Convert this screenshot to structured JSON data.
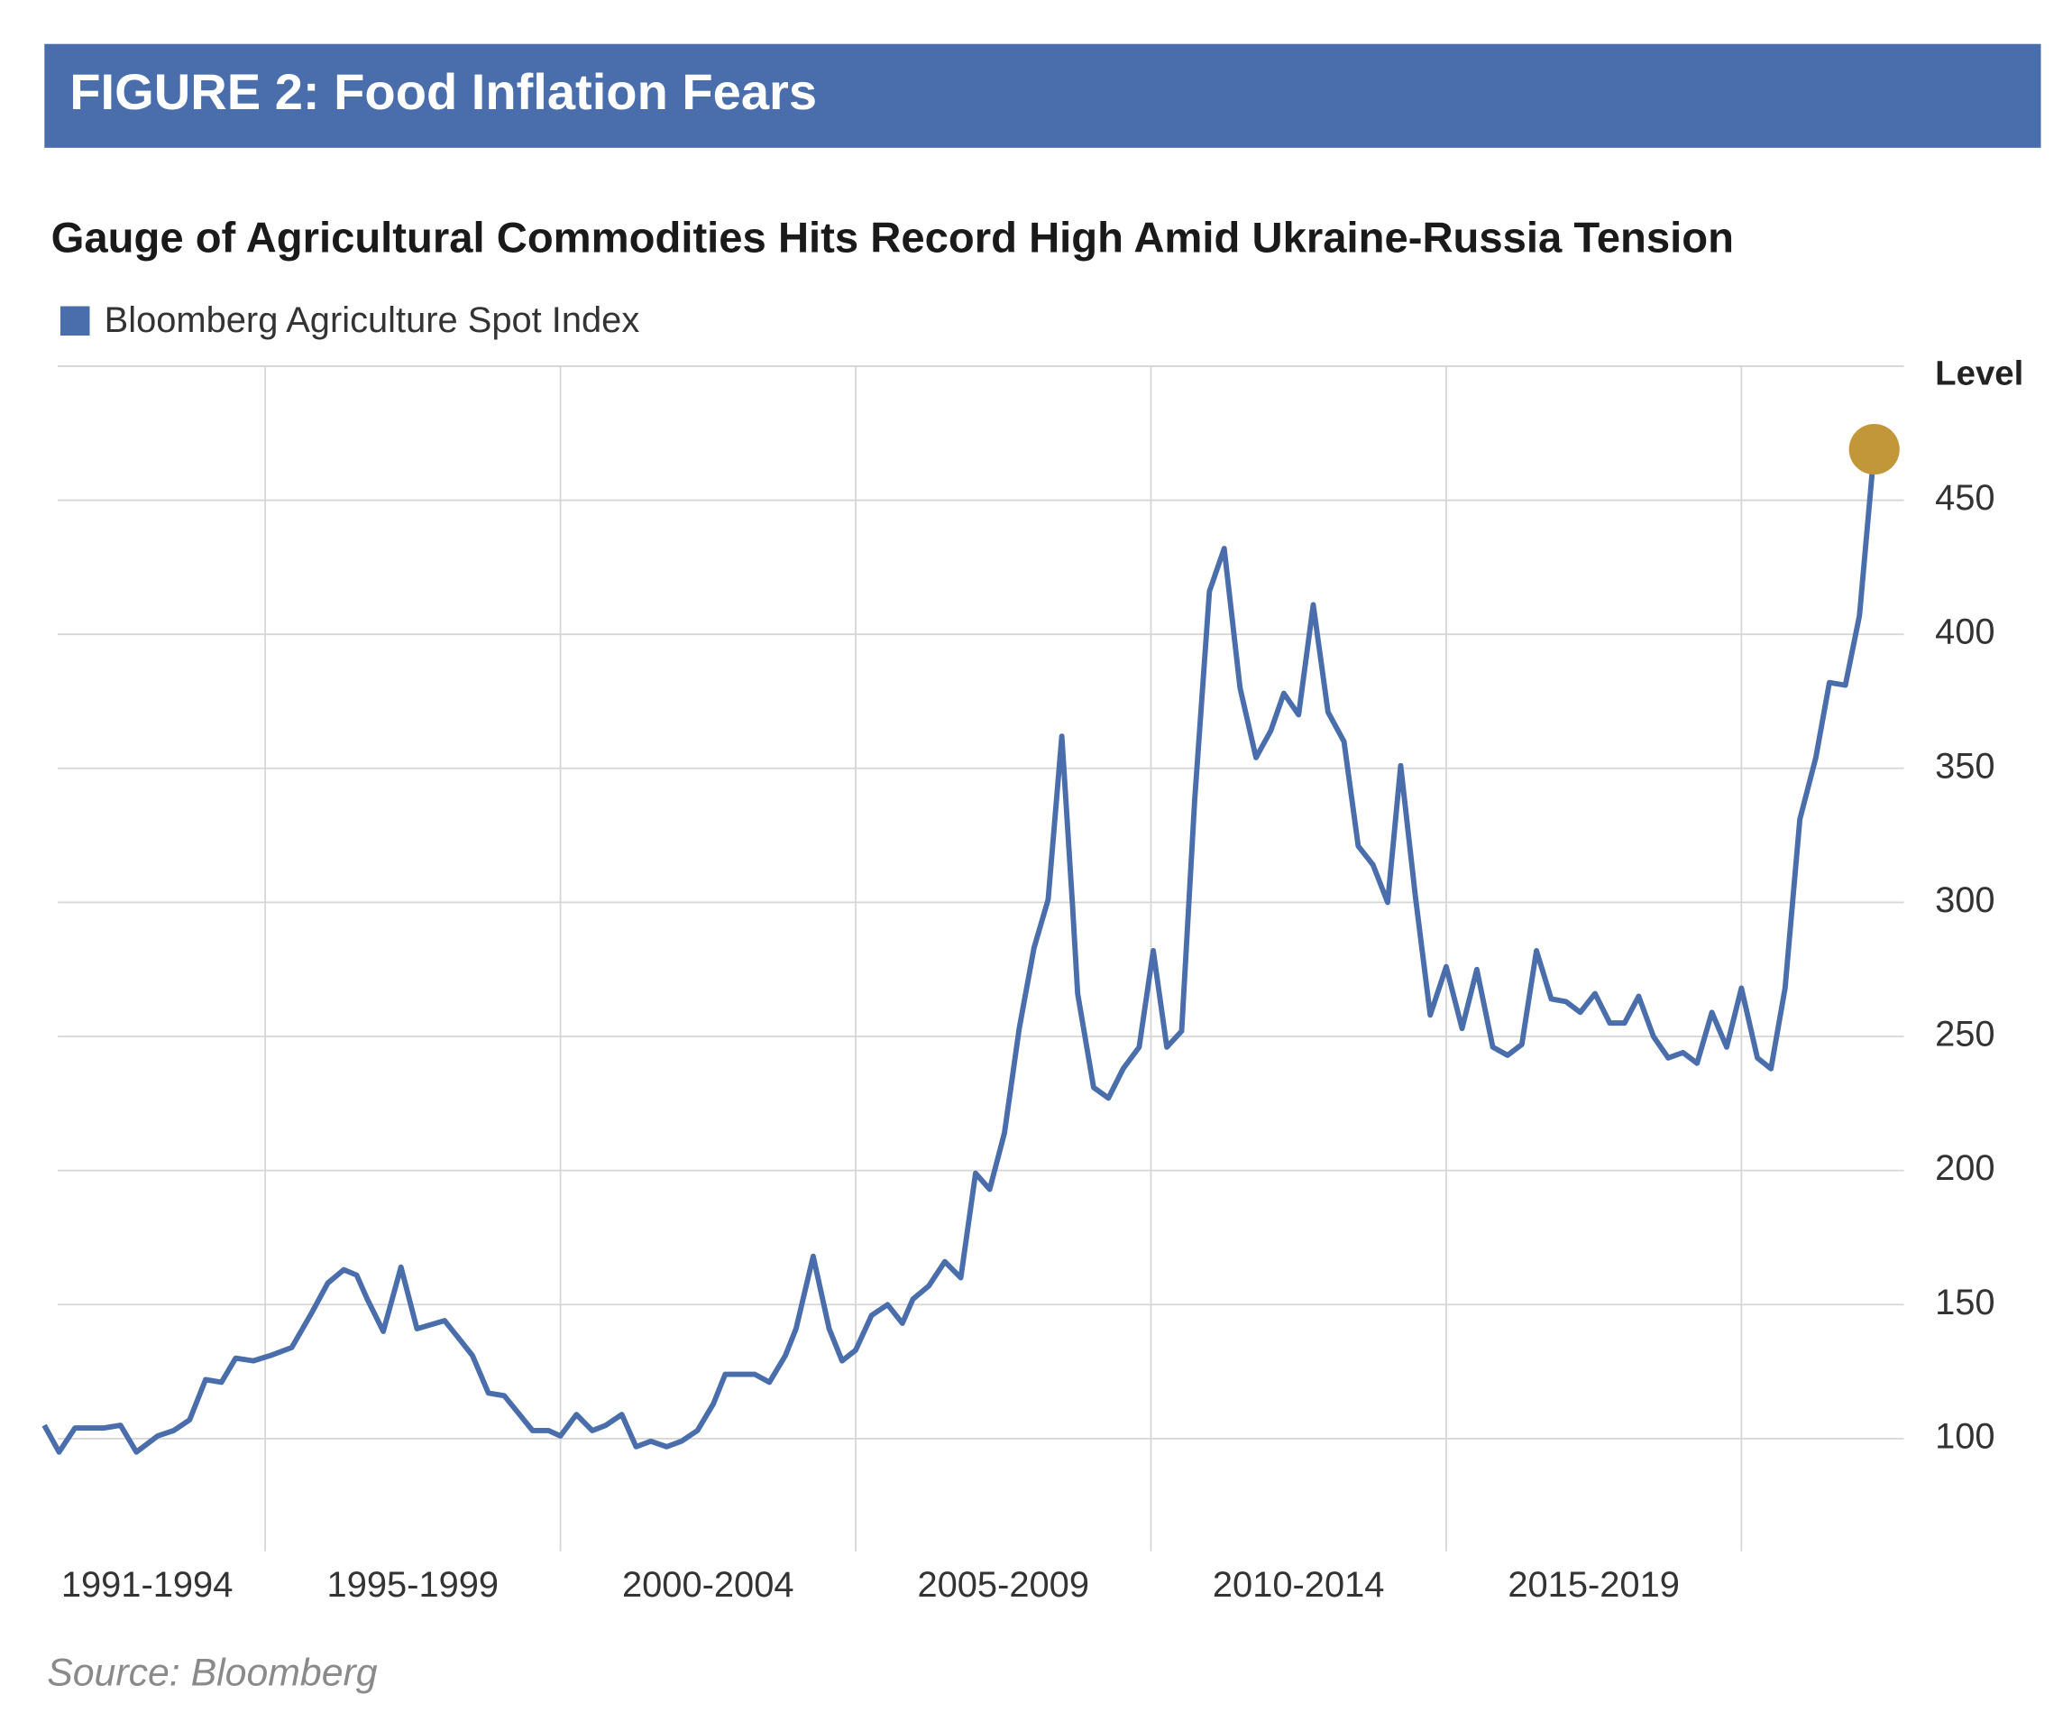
{
  "header": {
    "title": "FIGURE 2: Food Inflation Fears"
  },
  "chart_data": {
    "type": "line",
    "title": "Gauge of Agricultural Commodities Hits Record High Amid Ukraine-Russia Tension",
    "y_axis_label": "Level",
    "source": "Source: Bloomberg",
    "period_labels": [
      "1991-1994",
      "1995-1999",
      "2000-2004",
      "2005-2009",
      "2010-2014",
      "2015-2019"
    ],
    "xlim": [
      1991.0,
      2022.75
    ],
    "xticks": [
      1995,
      2000,
      2005,
      2010,
      2015,
      2020
    ],
    "ylim": [
      58,
      500
    ],
    "yticks": [
      100,
      150,
      200,
      250,
      300,
      350,
      400,
      450
    ],
    "grid": true,
    "legend": "top-left",
    "highlight_color": "#c2973a",
    "series": [
      {
        "name": "Bloomberg Agriculture Spot Index",
        "color": "#4a6eab",
        "x": [
          1991.26,
          1991.51,
          1991.78,
          1992.27,
          1992.55,
          1992.82,
          1993.18,
          1993.45,
          1993.72,
          1993.99,
          1994.26,
          1994.5,
          1994.8,
          1995.09,
          1995.45,
          1995.79,
          1996.06,
          1996.33,
          1996.55,
          1996.73,
          1997.0,
          1997.3,
          1997.57,
          1998.04,
          1998.51,
          1998.78,
          1999.05,
          1999.53,
          1999.8,
          2000.0,
          2000.27,
          2000.54,
          2000.77,
          2001.04,
          2001.28,
          2001.53,
          2001.8,
          2002.05,
          2002.32,
          2002.59,
          2002.79,
          2003.29,
          2003.54,
          2003.81,
          2003.99,
          2004.28,
          2004.55,
          2004.77,
          2005.0,
          2005.27,
          2005.54,
          2005.79,
          2005.97,
          2006.24,
          2006.51,
          2006.78,
          2007.03,
          2007.27,
          2007.52,
          2007.77,
          2008.02,
          2008.26,
          2008.49,
          2008.67,
          2008.76,
          2009.03,
          2009.28,
          2009.53,
          2009.8,
          2010.04,
          2010.27,
          2010.52,
          2010.74,
          2010.99,
          2011.24,
          2011.51,
          2011.78,
          2012.03,
          2012.25,
          2012.5,
          2012.75,
          2013.0,
          2013.27,
          2013.51,
          2013.76,
          2014.01,
          2014.23,
          2014.48,
          2014.73,
          2015.0,
          2015.27,
          2015.52,
          2015.79,
          2016.04,
          2016.28,
          2016.53,
          2016.78,
          2017.03,
          2017.27,
          2017.52,
          2017.77,
          2018.02,
          2018.26,
          2018.51,
          2018.76,
          2019.01,
          2019.25,
          2019.5,
          2019.75,
          2020.0,
          2020.27,
          2020.5,
          2020.74,
          2020.99,
          2021.26,
          2021.49,
          2021.76,
          2022.0,
          2022.25
        ],
        "values": [
          105,
          95,
          104,
          104,
          105,
          95,
          101,
          103,
          107,
          122,
          121,
          130,
          129,
          131,
          134,
          147,
          158,
          163,
          161,
          152,
          140,
          164,
          141,
          144,
          131,
          117,
          116,
          103,
          103,
          101,
          109,
          103,
          105,
          109,
          97,
          99,
          97,
          99,
          103,
          113,
          124,
          124,
          121,
          131,
          141,
          168,
          141,
          129,
          133,
          146,
          150,
          143,
          152,
          157,
          166,
          160,
          199,
          193,
          214,
          253,
          283,
          301,
          362,
          300,
          266,
          231,
          227,
          238,
          246,
          282,
          246,
          252,
          338,
          416,
          432,
          380,
          354,
          364,
          378,
          370,
          411,
          371,
          360,
          321,
          314,
          300,
          351,
          302,
          258,
          276,
          253,
          275,
          246,
          243,
          247,
          282,
          264,
          263,
          259,
          266,
          255,
          255,
          265,
          250,
          242,
          244,
          240,
          259,
          246,
          268,
          242,
          238,
          268,
          331,
          354,
          382,
          381,
          407,
          469
        ]
      }
    ]
  }
}
